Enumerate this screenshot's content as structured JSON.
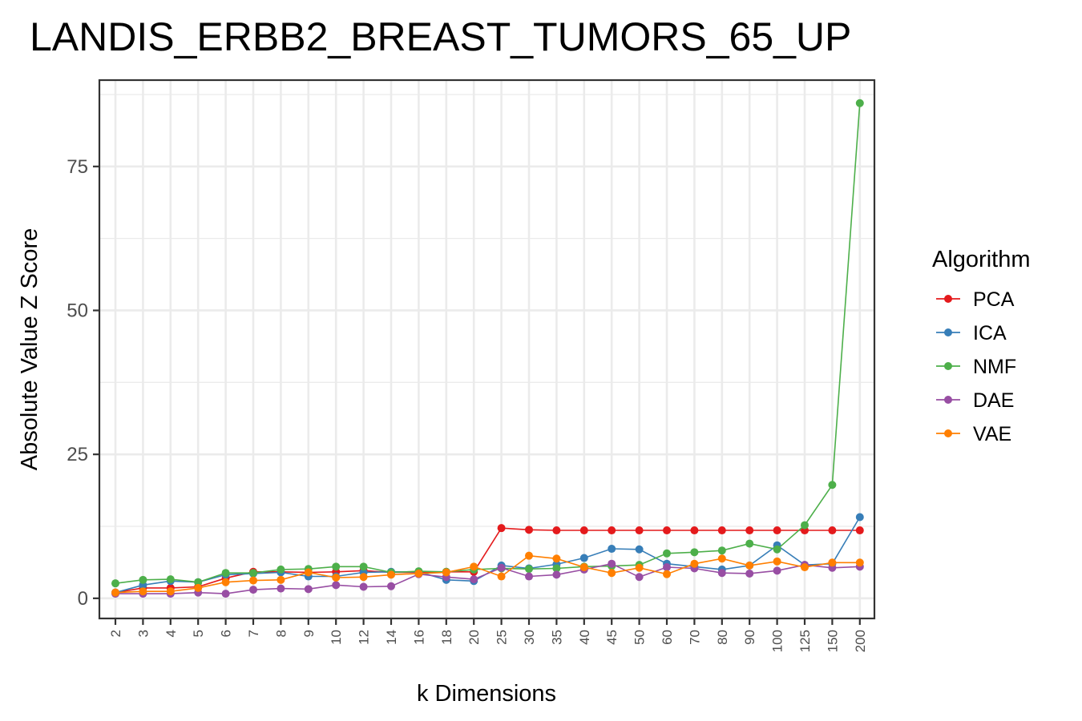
{
  "chart_data": {
    "type": "line",
    "title": "LANDIS_ERBB2_BREAST_TUMORS_65_UP",
    "xlabel": "k Dimensions",
    "ylabel": "Absolute Value Z Score",
    "categories": [
      "2",
      "3",
      "4",
      "5",
      "6",
      "7",
      "8",
      "9",
      "10",
      "12",
      "14",
      "16",
      "18",
      "20",
      "25",
      "30",
      "35",
      "40",
      "45",
      "50",
      "60",
      "70",
      "80",
      "90",
      "100",
      "125",
      "150",
      "200"
    ],
    "ylim": [
      -3.5,
      90
    ],
    "yticks": [
      0,
      25,
      50,
      75
    ],
    "grid": true,
    "legend": {
      "title": "Algorithm",
      "position": "right"
    },
    "series": [
      {
        "name": "PCA",
        "color": "#e41a1c",
        "values": [
          1.0,
          1.8,
          1.8,
          2.0,
          3.5,
          4.6,
          4.6,
          4.5,
          4.6,
          4.8,
          4.5,
          4.5,
          4.6,
          4.6,
          12.2,
          11.9,
          11.8,
          11.8,
          11.8,
          11.8,
          11.8,
          11.8,
          11.8,
          11.8,
          11.8,
          11.8,
          11.8,
          11.8
        ]
      },
      {
        "name": "ICA",
        "color": "#377eb8",
        "values": [
          1.0,
          2.3,
          3.0,
          2.8,
          4.1,
          4.3,
          4.5,
          3.8,
          3.8,
          4.5,
          4.6,
          4.6,
          3.2,
          3.0,
          5.7,
          5.2,
          5.9,
          7.0,
          8.6,
          8.5,
          6.0,
          5.5,
          5.0,
          5.7,
          9.2,
          5.8,
          6.0,
          14.1
        ]
      },
      {
        "name": "NMF",
        "color": "#4daf4a",
        "values": [
          2.6,
          3.2,
          3.3,
          2.8,
          4.4,
          4.4,
          5.0,
          5.1,
          5.5,
          5.5,
          4.5,
          4.7,
          4.6,
          5.0,
          5.2,
          5.1,
          5.2,
          5.5,
          5.6,
          5.8,
          7.8,
          8.0,
          8.3,
          9.5,
          8.5,
          12.7,
          19.7,
          86.0
        ]
      },
      {
        "name": "DAE",
        "color": "#984ea3",
        "values": [
          0.8,
          0.8,
          0.8,
          1.0,
          0.8,
          1.5,
          1.7,
          1.6,
          2.3,
          2.0,
          2.1,
          4.2,
          3.7,
          3.3,
          5.3,
          3.8,
          4.1,
          5.0,
          6.0,
          3.7,
          5.4,
          5.2,
          4.4,
          4.3,
          4.8,
          5.8,
          5.3,
          5.5
        ]
      },
      {
        "name": "VAE",
        "color": "#ff7f00",
        "values": [
          1.0,
          1.2,
          1.2,
          1.8,
          2.8,
          3.1,
          3.2,
          4.5,
          3.6,
          3.7,
          4.1,
          4.3,
          4.5,
          5.5,
          3.8,
          7.4,
          6.9,
          5.4,
          4.4,
          5.3,
          4.2,
          6.0,
          6.9,
          5.7,
          6.4,
          5.4,
          6.2,
          6.2
        ]
      }
    ]
  }
}
